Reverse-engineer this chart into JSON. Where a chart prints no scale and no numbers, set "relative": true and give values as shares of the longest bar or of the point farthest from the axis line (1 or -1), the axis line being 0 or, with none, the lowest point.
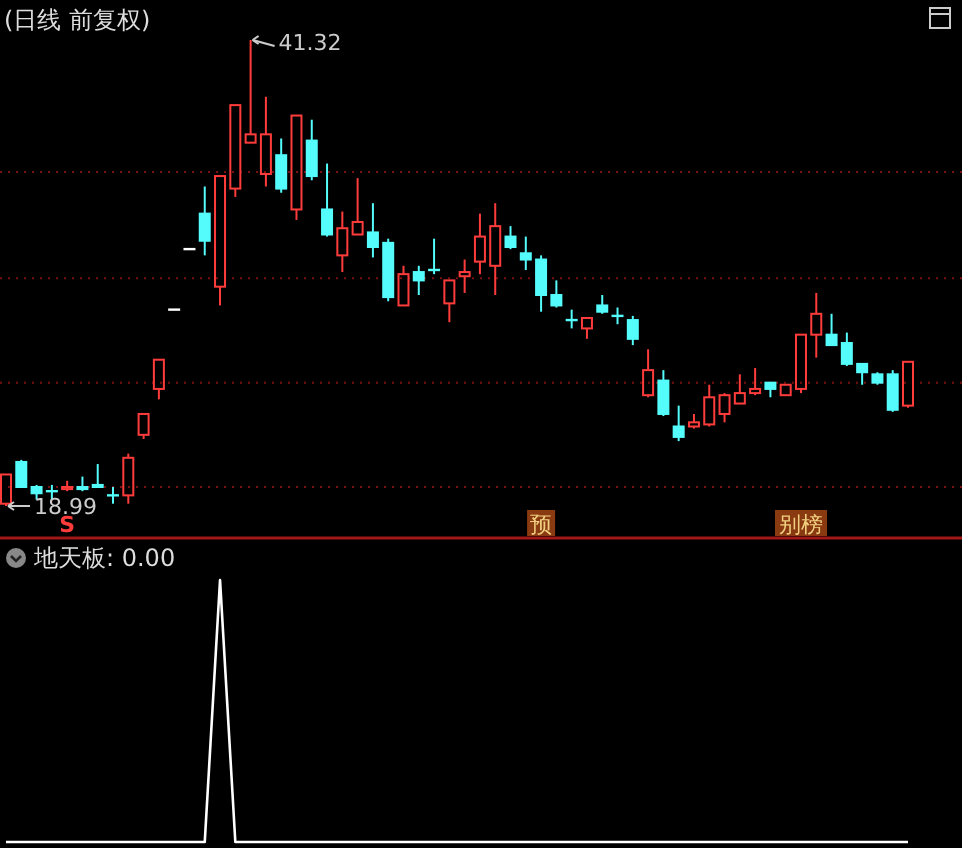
{
  "chart_data": [
    {
      "type": "candlestick",
      "title": "(日线 前复权)",
      "grid": true,
      "categories": [
        null,
        null,
        null,
        null,
        null,
        null,
        null,
        null,
        null,
        null,
        null,
        null,
        null,
        null,
        null,
        null,
        null,
        null,
        null,
        null,
        null,
        null,
        null,
        null,
        null,
        null,
        null,
        null,
        null,
        null,
        null,
        null,
        null,
        null,
        null,
        null,
        null,
        null,
        null,
        null,
        null,
        null,
        null,
        null,
        null,
        null,
        null,
        null,
        null,
        null,
        null,
        null,
        null,
        null,
        null,
        null,
        null,
        null,
        null,
        null
      ],
      "yticks": [
        {
          "value": 35.0,
          "label": null
        },
        {
          "value": 29.9,
          "label": null
        },
        {
          "value": 24.9,
          "label": null
        },
        {
          "value": 19.9,
          "label": null
        }
      ],
      "ohlc": [
        [
          19.1,
          20.5,
          18.99,
          20.5
        ],
        [
          21.1,
          21.2,
          19.9,
          19.9
        ],
        [
          19.9,
          20.0,
          19.3,
          19.6
        ],
        [
          19.7,
          20.0,
          19.3,
          19.7
        ],
        [
          19.8,
          20.2,
          19.7,
          19.9
        ],
        [
          19.9,
          20.4,
          19.7,
          19.8
        ],
        [
          20.0,
          21.0,
          19.9,
          19.9
        ],
        [
          19.5,
          19.9,
          19.1,
          19.5
        ],
        [
          19.5,
          21.5,
          19.1,
          21.3
        ],
        [
          22.4,
          23.4,
          22.2,
          23.4
        ],
        [
          24.6,
          26.0,
          24.1,
          26.0
        ],
        [
          28.4,
          28.4,
          28.4,
          28.4
        ],
        [
          31.3,
          31.3,
          31.3,
          31.3
        ],
        [
          33.0,
          34.3,
          31.0,
          31.7
        ],
        [
          29.5,
          34.8,
          28.6,
          34.8
        ],
        [
          34.2,
          38.2,
          33.8,
          38.2
        ],
        [
          36.4,
          41.32,
          36.4,
          36.8
        ],
        [
          34.9,
          38.6,
          34.3,
          36.8
        ],
        [
          35.8,
          36.6,
          34.0,
          34.2
        ],
        [
          33.2,
          37.7,
          32.7,
          37.7
        ],
        [
          36.5,
          37.5,
          34.6,
          34.8
        ],
        [
          33.2,
          35.4,
          31.9,
          32.0
        ],
        [
          31.0,
          33.1,
          30.2,
          32.3
        ],
        [
          32.0,
          34.7,
          32.0,
          32.6
        ],
        [
          32.1,
          33.5,
          30.9,
          31.4
        ],
        [
          31.6,
          31.8,
          28.8,
          29.0
        ],
        [
          28.6,
          30.5,
          28.6,
          30.1
        ],
        [
          30.2,
          30.5,
          29.1,
          29.8
        ],
        [
          30.3,
          31.8,
          30.1,
          30.3
        ],
        [
          28.7,
          29.8,
          27.8,
          29.8
        ],
        [
          30.0,
          30.8,
          29.2,
          30.2
        ],
        [
          30.7,
          33.0,
          30.1,
          31.9
        ],
        [
          30.5,
          33.5,
          29.1,
          32.4
        ],
        [
          31.9,
          32.4,
          31.3,
          31.4
        ],
        [
          31.1,
          31.9,
          30.3,
          30.8
        ],
        [
          30.8,
          31.0,
          28.3,
          29.1
        ],
        [
          29.1,
          29.8,
          28.5,
          28.6
        ],
        [
          27.9,
          28.4,
          27.5,
          27.9
        ],
        [
          27.5,
          28.0,
          27.0,
          28.0
        ],
        [
          28.6,
          29.1,
          28.2,
          28.3
        ],
        [
          28.1,
          28.5,
          27.7,
          28.1
        ],
        [
          27.9,
          28.1,
          26.7,
          27.0
        ],
        [
          24.3,
          26.5,
          24.2,
          25.5
        ],
        [
          25.0,
          25.5,
          23.3,
          23.4
        ],
        [
          22.8,
          23.8,
          22.1,
          22.3
        ],
        [
          22.8,
          23.4,
          22.7,
          23.0
        ],
        [
          22.9,
          24.8,
          22.8,
          24.2
        ],
        [
          23.4,
          24.4,
          23.0,
          24.3
        ],
        [
          23.9,
          25.3,
          23.9,
          24.4
        ],
        [
          24.4,
          25.6,
          24.3,
          24.6
        ],
        [
          24.9,
          24.9,
          24.2,
          24.6
        ],
        [
          24.3,
          24.8,
          24.3,
          24.8
        ],
        [
          24.6,
          27.2,
          24.4,
          27.2
        ],
        [
          27.2,
          29.2,
          26.1,
          28.2
        ],
        [
          27.2,
          28.2,
          26.7,
          26.7
        ],
        [
          26.8,
          27.3,
          25.7,
          25.8
        ],
        [
          25.8,
          25.8,
          24.8,
          25.4
        ],
        [
          25.3,
          25.4,
          24.8,
          24.9
        ],
        [
          25.3,
          25.5,
          23.5,
          23.6
        ],
        [
          23.8,
          25.9,
          23.7,
          25.9
        ]
      ],
      "colors": [
        "#ff3c3c",
        "#54fcfc",
        "#54fcfc",
        "#54fcfc",
        "#ff3c3c",
        "#54fcfc",
        "#54fcfc",
        "#54fcfc",
        "#ff3c3c",
        "#ff3c3c",
        "#ff3c3c",
        "#ffffff",
        "#ffffff",
        "#54fcfc",
        "#ff3c3c",
        "#ff3c3c",
        "#ff3c3c",
        "#ff3c3c",
        "#54fcfc",
        "#ff3c3c",
        "#54fcfc",
        "#54fcfc",
        "#ff3c3c",
        "#ff3c3c",
        "#54fcfc",
        "#54fcfc",
        "#ff3c3c",
        "#54fcfc",
        "#54fcfc",
        "#ff3c3c",
        "#ff3c3c",
        "#ff3c3c",
        "#ff3c3c",
        "#54fcfc",
        "#54fcfc",
        "#54fcfc",
        "#54fcfc",
        "#54fcfc",
        "#ff3c3c",
        "#54fcfc",
        "#54fcfc",
        "#54fcfc",
        "#ff3c3c",
        "#54fcfc",
        "#54fcfc",
        "#ff3c3c",
        "#ff3c3c",
        "#ff3c3c",
        "#ff3c3c",
        "#ff3c3c",
        "#54fcfc",
        "#ff3c3c",
        "#ff3c3c",
        "#ff3c3c",
        "#54fcfc",
        "#54fcfc",
        "#54fcfc",
        "#54fcfc",
        "#54fcfc",
        "#ff3c3c"
      ],
      "annotations": [
        "41.32",
        "18.99",
        "S",
        "预",
        "别榜"
      ]
    },
    {
      "type": "line",
      "title": "地天板: 0.00",
      "relative": true,
      "categories": [
        null,
        null,
        null,
        null,
        null,
        null,
        null,
        null,
        null,
        null,
        null,
        null,
        null,
        null,
        null,
        null,
        null,
        null,
        null,
        null,
        null,
        null,
        null,
        null,
        null,
        null,
        null,
        null,
        null,
        null,
        null,
        null,
        null,
        null,
        null,
        null,
        null,
        null,
        null,
        null,
        null,
        null,
        null,
        null,
        null,
        null,
        null,
        null,
        null,
        null,
        null,
        null,
        null,
        null,
        null,
        null,
        null,
        null,
        null,
        null
      ],
      "series": [
        {
          "color": "#ffffff",
          "values": [
            0,
            0,
            0,
            0,
            0,
            0,
            0,
            0,
            0,
            0,
            0,
            0,
            0,
            0,
            1,
            0,
            0,
            0,
            0,
            0,
            0,
            0,
            0,
            0,
            0,
            0,
            0,
            0,
            0,
            0,
            0,
            0,
            0,
            0,
            0,
            0,
            0,
            0,
            0,
            0,
            0,
            0,
            0,
            0,
            0,
            0,
            0,
            0,
            0,
            0,
            0,
            0,
            0,
            0,
            0,
            0,
            0,
            0,
            0,
            0
          ]
        }
      ]
    }
  ]
}
